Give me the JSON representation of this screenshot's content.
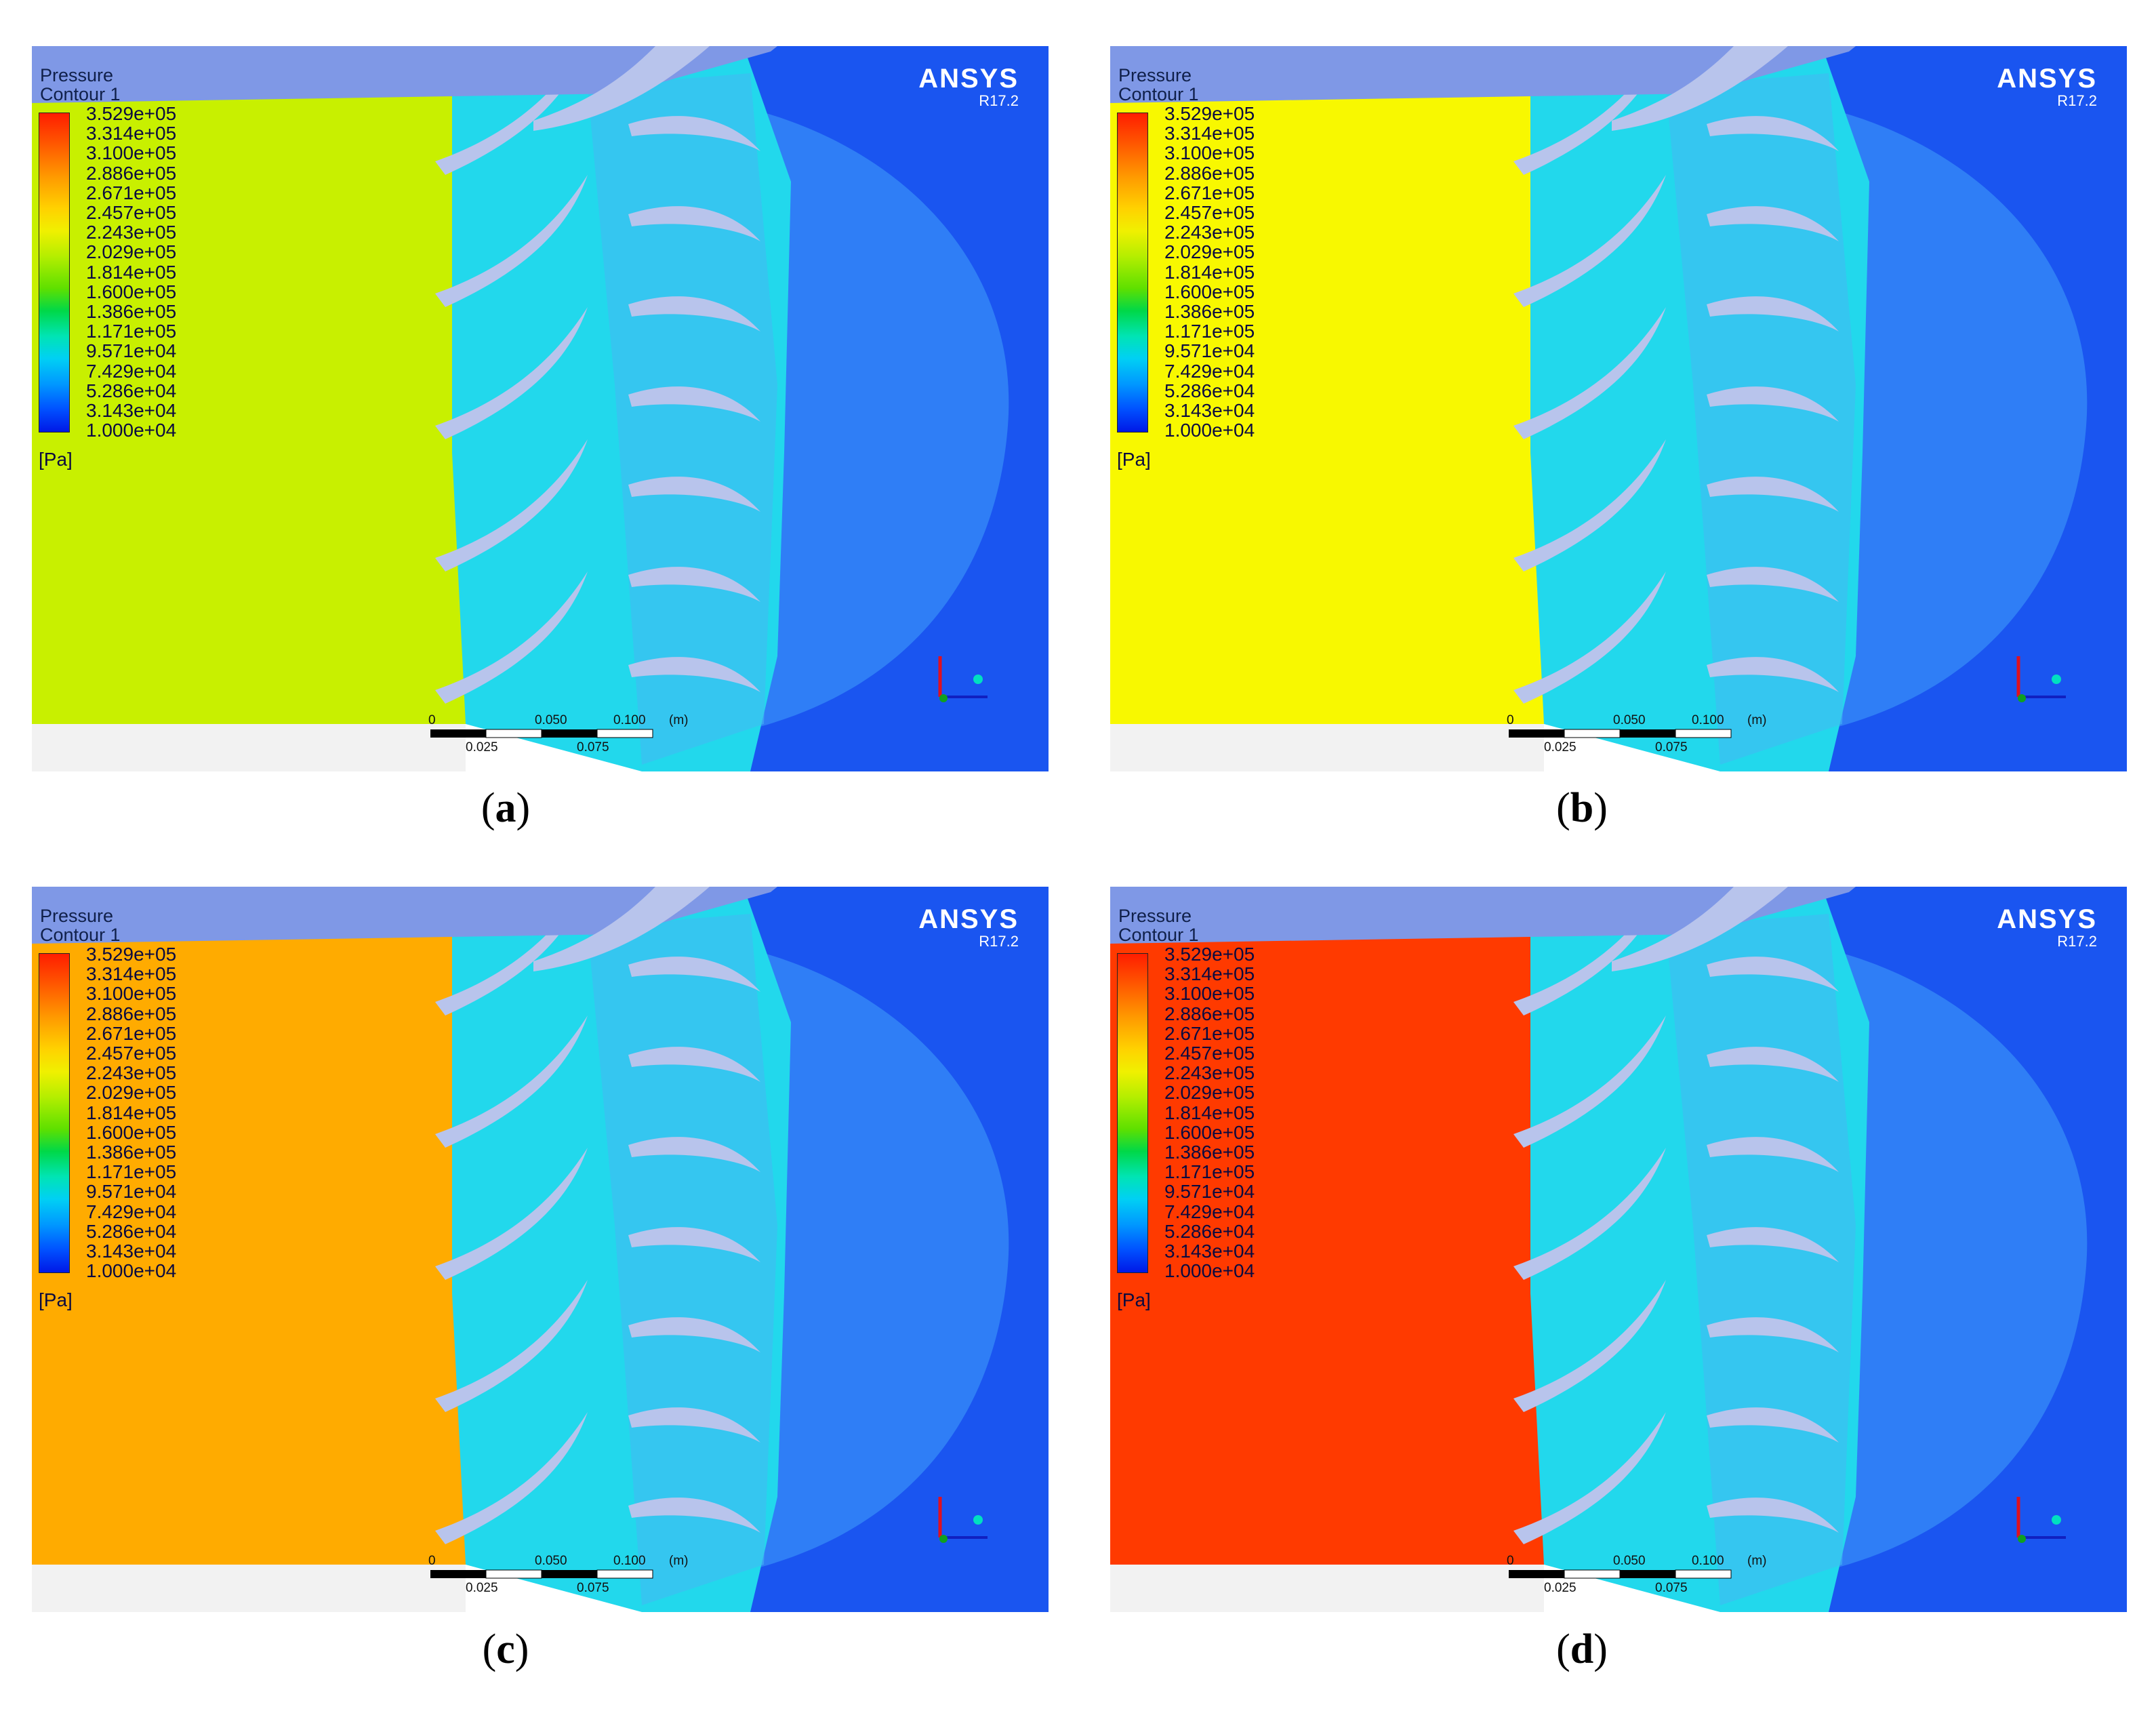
{
  "panels": [
    {
      "id": "a",
      "caption": "a",
      "inlet_color": "#c8f000"
    },
    {
      "id": "b",
      "caption": "b",
      "inlet_color": "#f8f800"
    },
    {
      "id": "c",
      "caption": "c",
      "inlet_color": "#ffab00"
    },
    {
      "id": "d",
      "caption": "d",
      "inlet_color": "#ff3a00"
    }
  ],
  "legend": {
    "title": "Pressure",
    "subtitle": "Contour 1",
    "unit": "[Pa]",
    "ticks": [
      "3.529e+05",
      "3.314e+05",
      "3.100e+05",
      "2.886e+05",
      "2.671e+05",
      "2.457e+05",
      "2.243e+05",
      "2.029e+05",
      "1.814e+05",
      "1.600e+05",
      "1.386e+05",
      "1.171e+05",
      "9.571e+04",
      "7.429e+04",
      "5.286e+04",
      "3.143e+04",
      "1.000e+04"
    ]
  },
  "brand": {
    "name": "ANSYS",
    "version": "R17.2"
  },
  "scale_bar": {
    "top_labels": [
      "0",
      "0.050",
      "0.100",
      "(m)"
    ],
    "bottom_labels": [
      "0.025",
      "0.075"
    ]
  },
  "colors": {
    "background_blue": "#1a55f0",
    "top_band": "#7f98e6",
    "blade": "#b8c4ec",
    "channel": "#22d8ec"
  }
}
